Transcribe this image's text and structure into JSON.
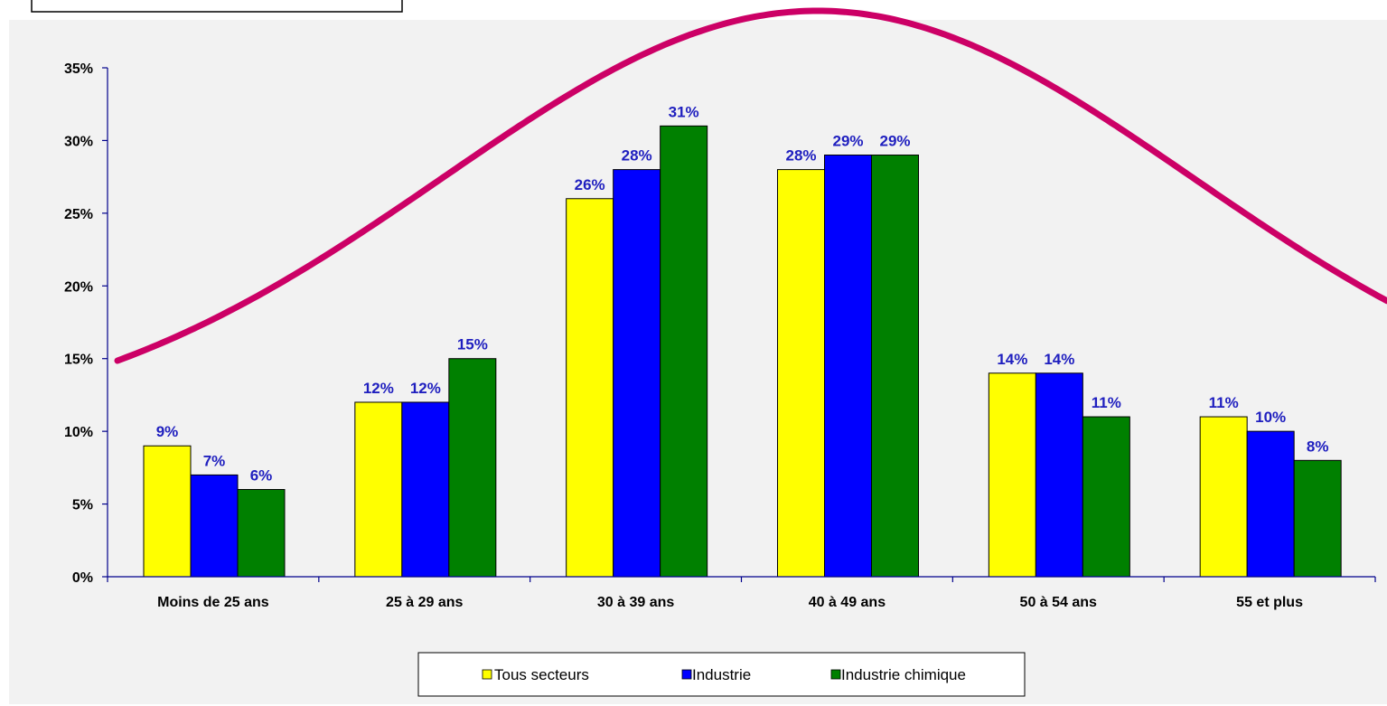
{
  "chart_data": {
    "type": "bar",
    "categories": [
      "Moins de 25 ans",
      "25 à 29 ans",
      "30 à 39 ans",
      "40 à 49 ans",
      "50 à 54 ans",
      "55 et plus"
    ],
    "series": [
      {
        "name": "Tous secteurs",
        "color": "#ffff00",
        "values": [
          9,
          12,
          26,
          28,
          14,
          11
        ],
        "labels": [
          "9%",
          "12%",
          "26%",
          "28%",
          "14%",
          "11%"
        ]
      },
      {
        "name": "Industrie",
        "color": "#0000ff",
        "values": [
          7,
          12,
          28,
          29,
          14,
          10
        ],
        "labels": [
          "7%",
          "12%",
          "28%",
          "29%",
          "14%",
          "10%"
        ]
      },
      {
        "name": "Industrie chimique",
        "color": "#008000",
        "values": [
          6,
          15,
          31,
          29,
          11,
          8
        ],
        "labels": [
          "6%",
          "15%",
          "31%",
          "29%",
          "11%",
          "8%"
        ]
      }
    ],
    "ylim": [
      0,
      35
    ],
    "y_ticks": [
      0,
      5,
      10,
      15,
      20,
      25,
      30,
      35
    ],
    "y_tick_labels": [
      "0%",
      "5%",
      "10%",
      "15%",
      "20%",
      "25%",
      "30%",
      "35%"
    ],
    "title": "",
    "xlabel": "",
    "ylabel": "",
    "grid": false,
    "legend_position": "bottom",
    "annotation_curve_color": "#cc0066",
    "plot_background": "#f2f2f2"
  }
}
